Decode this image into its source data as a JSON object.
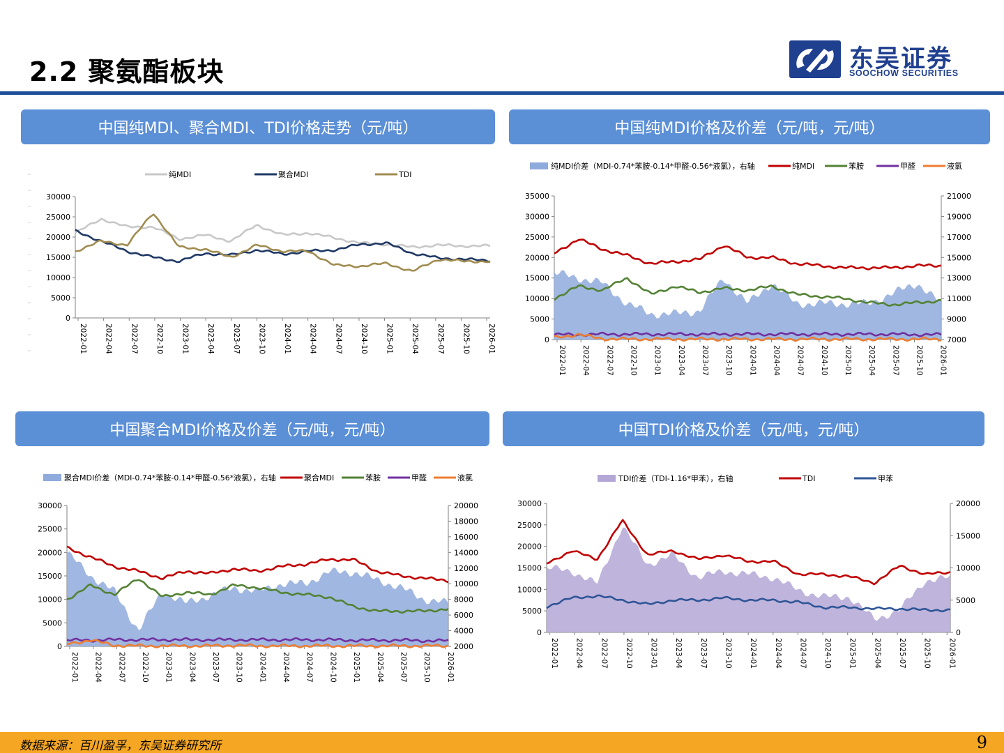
{
  "page": {
    "title": "2.2 聚氨酯板块",
    "page_number": "9"
  },
  "logo": {
    "cn": "东吴证券",
    "en": "SOOCHOW SECURITIES"
  },
  "footer": {
    "source": "数据来源：百川盈孚，东吴证券研究所"
  },
  "colors": {
    "header_blue": "#1f4e99",
    "panel_blue": "#5b8fd6",
    "footer_orange": "#f5a623"
  },
  "panels": [
    {
      "title": "中国纯MDI、聚合MDI、TDI价格走势（元/吨）"
    },
    {
      "title": "中国纯MDI价格及价差（元/吨，元/吨）"
    },
    {
      "title": "中国聚合MDI价格及价差（元/吨，元/吨）"
    },
    {
      "title": "中国TDI价格及价差（元/吨，元/吨）"
    }
  ],
  "chart_data": [
    {
      "type": "line",
      "title": "中国纯MDI、聚合MDI、TDI价格走势（元/吨）",
      "ylim": [
        0,
        30000
      ],
      "y_ticks": [
        0,
        5000,
        10000,
        15000,
        20000,
        25000,
        30000
      ],
      "x_ticks": [
        "2022-01",
        "2022-04",
        "2022-07",
        "2022-10",
        "2023-01",
        "2023-04",
        "2023-07",
        "2023-10",
        "2024-01",
        "2024-04",
        "2024-07",
        "2024-10",
        "2025-01",
        "2025-04",
        "2025-07",
        "2025-10",
        "2026-01"
      ],
      "series": [
        {
          "name": "纯MDI",
          "color": "#c8c8c8",
          "values": [
            21000,
            24500,
            22500,
            22500,
            19500,
            20500,
            19000,
            23000,
            20500,
            21000,
            19800,
            18500,
            18200,
            17500,
            18000,
            17800,
            17800
          ]
        },
        {
          "name": "聚合MDI",
          "color": "#1f3864",
          "values": [
            21500,
            19000,
            16500,
            15000,
            14000,
            16000,
            15500,
            16800,
            15800,
            16500,
            16800,
            18200,
            18500,
            16000,
            14800,
            14500,
            14200
          ]
        },
        {
          "name": "TDI",
          "color": "#a08c50",
          "values": [
            16500,
            19000,
            18000,
            26000,
            17500,
            17000,
            15000,
            18000,
            16500,
            16500,
            13000,
            12800,
            13500,
            11500,
            14500,
            14000,
            14000
          ]
        }
      ]
    },
    {
      "type": "area+line",
      "title": "中国纯MDI价格及价差（元/吨，元/吨）",
      "ylim": [
        0,
        35000
      ],
      "y2lim": [
        7000,
        21000
      ],
      "y_ticks": [
        0,
        5000,
        10000,
        15000,
        20000,
        25000,
        30000,
        35000
      ],
      "y2_ticks": [
        7000,
        9000,
        11000,
        13000,
        15000,
        17000,
        19000,
        21000
      ],
      "x_ticks": [
        "2022-01",
        "2022-04",
        "2022-07",
        "2022-10",
        "2023-01",
        "2023-04",
        "2023-07",
        "2023-10",
        "2024-01",
        "2024-04",
        "2024-07",
        "2024-10",
        "2025-01",
        "2025-04",
        "2025-07",
        "2025-10",
        "2026-01"
      ],
      "series": [
        {
          "name": "纯MDI价差（MDI-0.74*苯胺-0.14*甲醛-0.56*液氯），右轴",
          "kind": "area",
          "axis": "right",
          "color": "#8faadc",
          "values": [
            13500,
            13000,
            12500,
            10500,
            9500,
            9500,
            9800,
            13000,
            10500,
            12500,
            10500,
            10500,
            10500,
            10500,
            11500,
            12500,
            10500
          ]
        },
        {
          "name": "纯MDI",
          "kind": "line",
          "axis": "left",
          "color": "#c00000",
          "values": [
            21000,
            24500,
            22000,
            20500,
            18500,
            19000,
            19500,
            23000,
            20000,
            20000,
            18500,
            18000,
            17500,
            17500,
            17500,
            18000,
            18000
          ]
        },
        {
          "name": "苯胺",
          "kind": "line",
          "axis": "left",
          "color": "#548235",
          "values": [
            10000,
            13000,
            12000,
            15000,
            11000,
            13000,
            11500,
            12500,
            12000,
            13000,
            11000,
            10500,
            10000,
            9000,
            8500,
            9000,
            9500
          ]
        },
        {
          "name": "甲醛",
          "kind": "line",
          "axis": "left",
          "color": "#7030a0",
          "values": [
            1200,
            1200,
            1300,
            1300,
            1300,
            1300,
            1300,
            1300,
            1300,
            1300,
            1300,
            1300,
            1300,
            1300,
            1300,
            1200,
            1200
          ]
        },
        {
          "name": "液氯",
          "kind": "line",
          "axis": "left",
          "color": "#ed7d31",
          "values": [
            500,
            1200,
            200,
            100,
            100,
            100,
            100,
            100,
            100,
            100,
            100,
            100,
            100,
            100,
            100,
            100,
            100
          ]
        }
      ]
    },
    {
      "type": "area+line",
      "title": "中国聚合MDI价格及价差（元/吨，元/吨）",
      "ylim": [
        0,
        30000
      ],
      "y2lim": [
        2000,
        20000
      ],
      "y_ticks": [
        0,
        5000,
        10000,
        15000,
        20000,
        25000,
        30000
      ],
      "y2_ticks": [
        2000,
        4000,
        6000,
        8000,
        10000,
        12000,
        14000,
        16000,
        18000,
        20000
      ],
      "x_ticks": [
        "2022-01",
        "2022-04",
        "2022-07",
        "2022-10",
        "2023-01",
        "2023-04",
        "2023-07",
        "2023-10",
        "2024-01",
        "2024-04",
        "2024-07",
        "2024-10",
        "2025-01",
        "2025-04",
        "2025-07",
        "2025-10",
        "2026-01"
      ],
      "series": [
        {
          "name": "聚合MDI价差（MDI-0.74*苯胺-0.14*甲醛-0.56*液氯），右轴",
          "kind": "area",
          "axis": "right",
          "color": "#8faadc",
          "values": [
            14000,
            11000,
            9000,
            4000,
            9000,
            7500,
            8500,
            9500,
            9000,
            10000,
            10000,
            11500,
            11500,
            10500,
            9500,
            8000,
            7500
          ]
        },
        {
          "name": "聚合MDI",
          "kind": "line",
          "axis": "left",
          "color": "#c00000",
          "values": [
            21000,
            19000,
            17000,
            16000,
            14500,
            16000,
            15500,
            16500,
            16000,
            17000,
            17500,
            18500,
            18500,
            16000,
            15000,
            14500,
            14000
          ]
        },
        {
          "name": "苯胺",
          "kind": "line",
          "axis": "left",
          "color": "#548235",
          "values": [
            10000,
            13000,
            11000,
            14500,
            10500,
            11500,
            11000,
            13000,
            12500,
            11500,
            11000,
            10500,
            8500,
            7500,
            7500,
            7500,
            8000
          ]
        },
        {
          "name": "甲醛",
          "kind": "line",
          "axis": "left",
          "color": "#7030a0",
          "values": [
            1300,
            1300,
            1400,
            1400,
            1400,
            1400,
            1400,
            1400,
            1400,
            1400,
            1400,
            1400,
            1300,
            1300,
            1300,
            1200,
            1200
          ]
        },
        {
          "name": "液氯",
          "kind": "line",
          "axis": "left",
          "color": "#ed7d31",
          "values": [
            500,
            1300,
            200,
            100,
            100,
            100,
            100,
            200,
            100,
            100,
            100,
            100,
            100,
            100,
            100,
            100,
            100
          ]
        }
      ]
    },
    {
      "type": "area+line",
      "title": "中国TDI价格及价差（元/吨，元/吨）",
      "ylim": [
        0,
        30000
      ],
      "y2lim": [
        0,
        20000
      ],
      "y_ticks": [
        0,
        5000,
        10000,
        15000,
        20000,
        25000,
        30000
      ],
      "y2_ticks": [
        0,
        5000,
        10000,
        15000,
        20000
      ],
      "x_ticks": [
        "2022-01",
        "2022-04",
        "2022-07",
        "2022-10",
        "2023-01",
        "2023-04",
        "2023-07",
        "2023-10",
        "2024-01",
        "2024-04",
        "2024-07",
        "2024-10",
        "2025-01",
        "2025-04",
        "2025-07",
        "2025-10",
        "2026-01"
      ],
      "series": [
        {
          "name": "TDI价差（TDI-1.16*甲苯），右轴",
          "kind": "area",
          "axis": "right",
          "color": "#b4a7d6",
          "values": [
            10000,
            9500,
            7500,
            16500,
            10500,
            12000,
            8500,
            9500,
            9000,
            8500,
            6500,
            5500,
            5500,
            2000,
            3500,
            8000,
            8500
          ]
        },
        {
          "name": "TDI",
          "kind": "line",
          "axis": "left",
          "color": "#c00000",
          "values": [
            16000,
            19000,
            17000,
            26000,
            18000,
            19000,
            17000,
            18000,
            16500,
            16500,
            13500,
            13500,
            13000,
            11500,
            15500,
            13500,
            14000
          ]
        },
        {
          "name": "甲苯",
          "kind": "line",
          "axis": "left",
          "color": "#2f5597",
          "values": [
            6000,
            8000,
            8500,
            7500,
            6500,
            7500,
            7500,
            8000,
            7500,
            7500,
            7000,
            5800,
            5800,
            5500,
            5500,
            5200,
            5200
          ]
        }
      ]
    }
  ]
}
